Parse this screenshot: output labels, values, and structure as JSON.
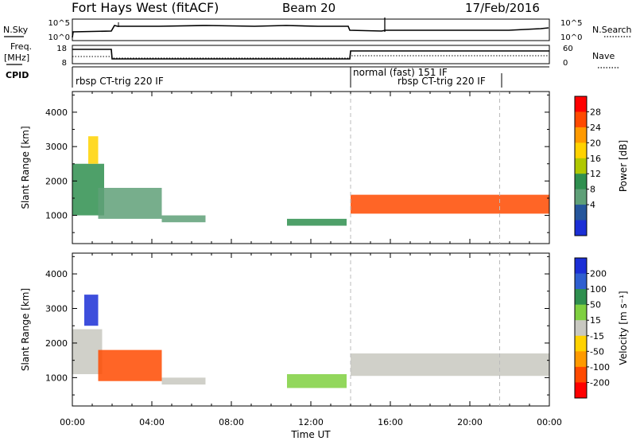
{
  "header": {
    "radar": "Fort Hays West (fitACF)",
    "beam": "Beam 20",
    "date": "17/Feb/2016"
  },
  "panels": {
    "nsky_label": "N.Sky",
    "nsky_ticks": [
      "10^5",
      "10^0"
    ],
    "nsearch_label": "N.Search",
    "nsearch_ticks": [
      "10^5",
      "10^0"
    ],
    "freq_label": "Freq.",
    "freq_unit": "[MHz]",
    "freq_ticks": [
      "18",
      "8"
    ],
    "nave_label": "Nave",
    "nave_ticks": [
      "60",
      "0"
    ],
    "cpid_label": "CPID",
    "cpid_segments": [
      "rbsp CT-trig 220 IF",
      "normal (fast) 151 IF",
      "rbsp CT-trig 220 IF"
    ]
  },
  "chart_data": [
    {
      "type": "heatmap",
      "name": "Power",
      "ylabel": "Slant Range [km]",
      "xlabel": "",
      "x_ticks": [
        "00:00",
        "04:00",
        "08:00",
        "12:00",
        "16:00",
        "20:00",
        "00:00"
      ],
      "xlim_hours": [
        0,
        24
      ],
      "y_ticks": [
        1000,
        2000,
        3000,
        4000
      ],
      "ylim": [
        180,
        4600
      ],
      "colorbar": {
        "label": "Power [dB]",
        "ticks": [
          "28",
          "24",
          "20",
          "16",
          "12",
          "8",
          "4"
        ],
        "colors": [
          "#ff0000",
          "#ff4a00",
          "#ff9a00",
          "#ffd200",
          "#b0c800",
          "#2f8f4f",
          "#5fa078",
          "#26569c",
          "#1b2fd6"
        ]
      },
      "regions": [
        {
          "hours": [
            0.0,
            1.6
          ],
          "range_km": [
            1000,
            2500
          ],
          "level_db": 12
        },
        {
          "hours": [
            0.8,
            1.3
          ],
          "range_km": [
            2500,
            3300
          ],
          "level_db": 20
        },
        {
          "hours": [
            1.3,
            4.5
          ],
          "range_km": [
            900,
            1800
          ],
          "level_db": 10
        },
        {
          "hours": [
            4.5,
            6.7
          ],
          "range_km": [
            800,
            1000
          ],
          "level_db": 8
        },
        {
          "hours": [
            10.8,
            13.8
          ],
          "range_km": [
            700,
            900
          ],
          "level_db": 12
        },
        {
          "hours": [
            14.0,
            24.0
          ],
          "range_km": [
            1050,
            1600
          ],
          "level_db": 28
        }
      ]
    },
    {
      "type": "heatmap",
      "name": "Velocity",
      "ylabel": "Slant Range [km]",
      "xlabel": "Time UT",
      "x_ticks": [
        "00:00",
        "04:00",
        "08:00",
        "12:00",
        "16:00",
        "20:00",
        "00:00"
      ],
      "xlim_hours": [
        0,
        24
      ],
      "y_ticks": [
        1000,
        2000,
        3000,
        4000
      ],
      "ylim": [
        180,
        4600
      ],
      "colorbar": {
        "label": "Velocity [m s⁻¹]",
        "ticks": [
          "200",
          "100",
          "50",
          "15",
          "-15",
          "-50",
          "-100",
          "-200"
        ],
        "colors": [
          "#1b2fd6",
          "#2f5fd0",
          "#2f8f4f",
          "#7fd040",
          "#c8c8c0",
          "#ffd200",
          "#ff9a00",
          "#ff4a00",
          "#ff0000"
        ]
      },
      "regions": [
        {
          "hours": [
            0.0,
            1.5
          ],
          "range_km": [
            1100,
            2400
          ],
          "level_ms": 0
        },
        {
          "hours": [
            0.6,
            1.3
          ],
          "range_km": [
            2500,
            3400
          ],
          "level_ms": 200
        },
        {
          "hours": [
            1.3,
            4.5
          ],
          "range_km": [
            900,
            1800
          ],
          "level_ms": -100
        },
        {
          "hours": [
            4.5,
            6.7
          ],
          "range_km": [
            800,
            1000
          ],
          "level_ms": 0
        },
        {
          "hours": [
            10.8,
            13.8
          ],
          "range_km": [
            700,
            1100
          ],
          "level_ms": 50
        },
        {
          "hours": [
            14.0,
            24.0
          ],
          "range_km": [
            1050,
            1700
          ],
          "level_ms": 0
        }
      ]
    }
  ]
}
